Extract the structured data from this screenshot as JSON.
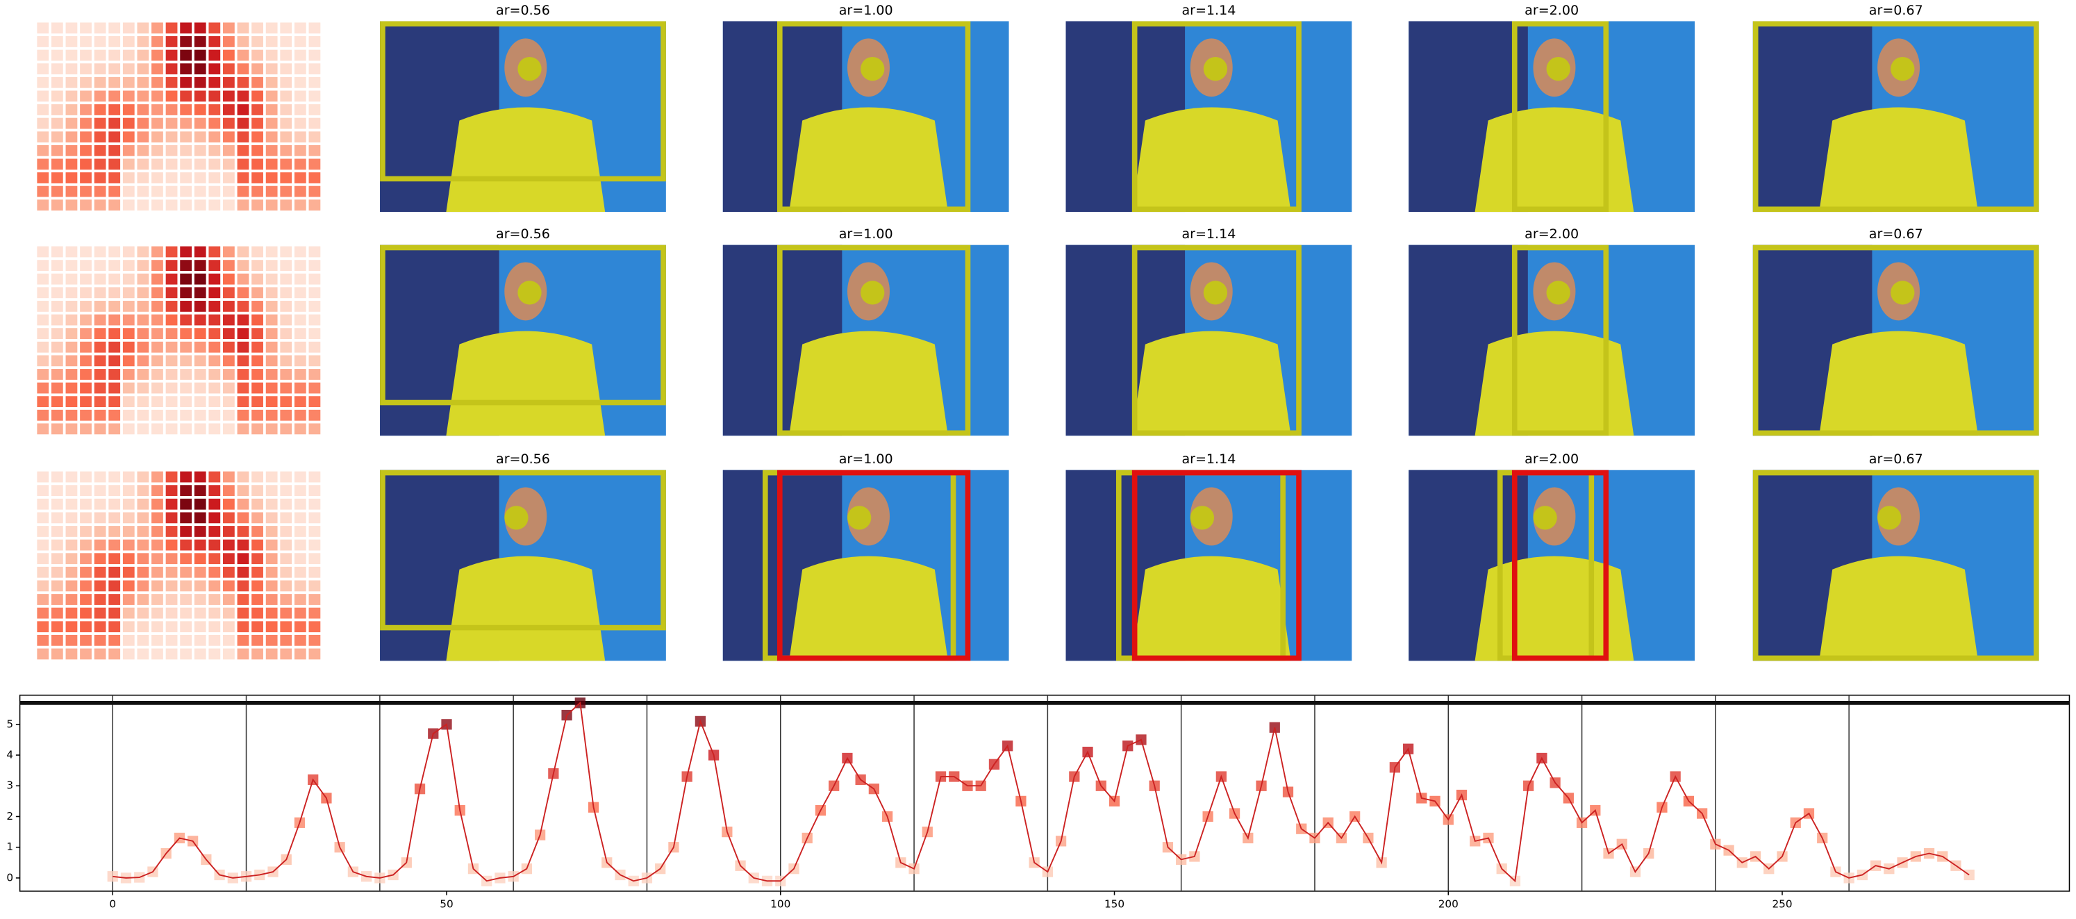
{
  "panels": {
    "rows": [
      [
        "ar=0.56",
        "ar=1.00",
        "ar=1.14",
        "ar=2.00",
        "ar=0.67"
      ],
      [
        "ar=0.56",
        "ar=1.00",
        "ar=1.14",
        "ar=2.00",
        "ar=0.67"
      ],
      [
        "ar=0.56",
        "ar=1.00",
        "ar=1.14",
        "ar=2.00",
        "ar=0.67"
      ]
    ]
  },
  "chart_data": {
    "type": "line",
    "color": "#cc2222",
    "x": [
      0,
      2,
      4,
      6,
      8,
      10,
      12,
      14,
      16,
      18,
      20,
      22,
      24,
      26,
      28,
      30,
      32,
      34,
      36,
      38,
      40,
      42,
      44,
      46,
      48,
      50,
      52,
      54,
      56,
      58,
      60,
      62,
      64,
      66,
      68,
      70,
      72,
      74,
      76,
      78,
      80,
      82,
      84,
      86,
      88,
      90,
      92,
      94,
      96,
      98,
      100,
      102,
      104,
      106,
      108,
      110,
      112,
      114,
      116,
      118,
      120,
      122,
      124,
      126,
      128,
      130,
      132,
      134,
      136,
      138,
      140,
      142,
      144,
      146,
      148,
      150,
      152,
      154,
      156,
      158,
      160,
      162,
      164,
      166,
      168,
      170,
      172,
      174,
      176,
      178,
      180,
      182,
      184,
      186,
      188,
      190,
      192,
      194,
      196,
      198,
      200,
      202,
      204,
      206,
      208,
      210,
      212,
      214,
      216,
      218,
      220,
      222,
      224,
      226,
      228,
      230,
      232,
      234,
      236,
      238,
      240,
      242,
      244,
      246,
      248,
      250,
      252,
      254,
      256,
      258,
      260,
      262,
      264,
      266,
      268,
      270,
      272,
      274,
      276,
      278
    ],
    "values": [
      0.05,
      0,
      0.02,
      0.2,
      0.8,
      1.3,
      1.2,
      0.6,
      0.1,
      0,
      0.05,
      0.1,
      0.2,
      0.6,
      1.8,
      3.2,
      2.6,
      1.0,
      0.2,
      0.05,
      0,
      0.1,
      0.5,
      2.9,
      4.7,
      5.0,
      2.2,
      0.3,
      -0.1,
      0,
      0.05,
      0.3,
      1.4,
      3.4,
      5.3,
      5.7,
      2.3,
      0.5,
      0.1,
      -0.1,
      0,
      0.3,
      1.0,
      3.3,
      5.1,
      4.0,
      1.5,
      0.4,
      0,
      -0.1,
      -0.1,
      0.3,
      1.3,
      2.2,
      3.0,
      3.9,
      3.2,
      2.9,
      2.0,
      0.5,
      0.3,
      1.5,
      3.3,
      3.3,
      3.0,
      3.0,
      3.7,
      4.3,
      2.5,
      0.5,
      0.2,
      1.2,
      3.3,
      4.1,
      3.0,
      2.5,
      4.3,
      4.5,
      3.0,
      1.0,
      0.6,
      0.7,
      2.0,
      3.3,
      2.1,
      1.3,
      3.0,
      4.9,
      2.8,
      1.6,
      1.3,
      1.8,
      1.3,
      2.0,
      1.3,
      0.5,
      3.6,
      4.2,
      2.6,
      2.5,
      1.9,
      2.7,
      1.2,
      1.3,
      0.3,
      -0.1,
      3.0,
      3.9,
      3.1,
      2.6,
      1.8,
      2.2,
      0.8,
      1.1,
      0.2,
      0.8,
      2.3,
      3.3,
      2.5,
      2.1,
      1.1,
      0.9,
      0.5,
      0.7,
      0.3,
      0.7,
      1.8,
      2.1,
      1.3,
      0.2,
      0,
      0.1,
      0.4,
      0.3,
      0.5,
      0.7,
      0.8,
      0.7,
      0.4,
      0.1
    ],
    "xlim": [
      -13.9,
      293
    ],
    "ylim": [
      -0.43,
      5.95
    ],
    "xticks": [
      0,
      50,
      100,
      150,
      200,
      250
    ],
    "yticks": [
      0,
      1,
      2,
      3,
      4,
      5
    ],
    "vlines": [
      0,
      20,
      40,
      60,
      80,
      100,
      120,
      140,
      160,
      180,
      200,
      220,
      240,
      260
    ],
    "hline": 5.7
  }
}
